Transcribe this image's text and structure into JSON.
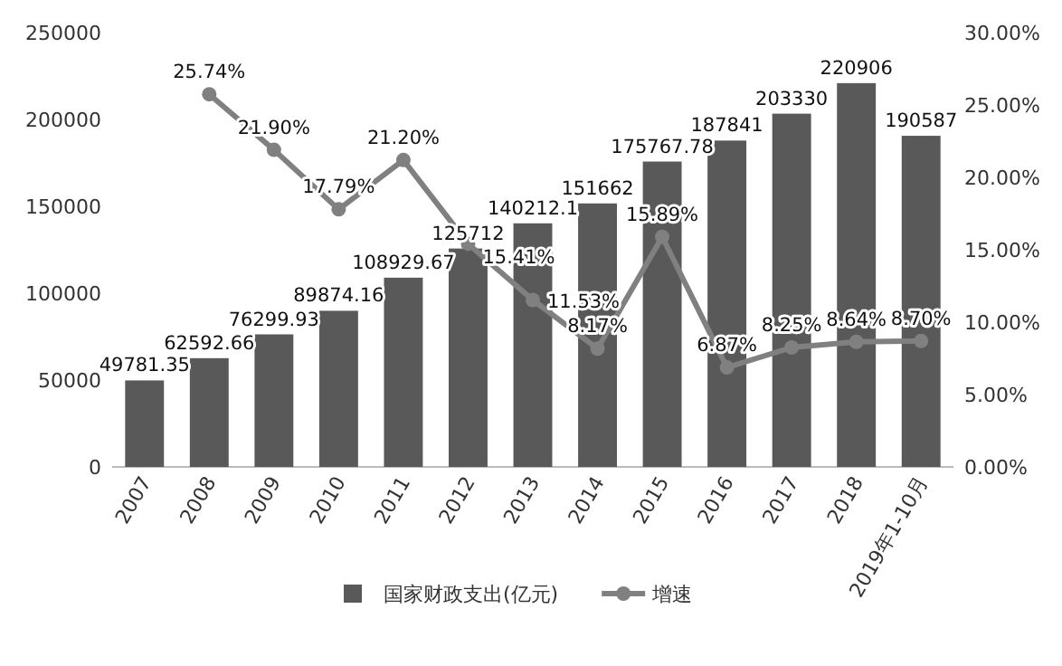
{
  "chart_data": {
    "type": "bar",
    "categories": [
      "2007",
      "2008",
      "2009",
      "2010",
      "2011",
      "2012",
      "2013",
      "2014",
      "2015",
      "2016",
      "2017",
      "2018",
      "2019年1-10月"
    ],
    "series": [
      {
        "name": "国家财政支出(亿元)",
        "type": "bar",
        "color": "#595959",
        "values": [
          49781.35,
          62592.66,
          76299.93,
          89874.16,
          108929.67,
          125712,
          140212.1,
          151662,
          175767.78,
          187841,
          203330,
          220906,
          190587
        ],
        "value_labels": [
          "49781.35",
          "62592.66",
          "76299.93",
          "89874.16",
          "108929.67",
          "125712",
          "140212.1",
          "151662",
          "175767.78",
          "187841",
          "203330",
          "220906",
          "190587"
        ]
      },
      {
        "name": "增速",
        "type": "line",
        "axis": "y2",
        "color": "#808080",
        "marker": "circle",
        "values": [
          null,
          25.74,
          21.9,
          17.79,
          21.2,
          15.41,
          11.53,
          8.17,
          15.89,
          6.87,
          8.25,
          8.64,
          8.7
        ],
        "value_labels": [
          null,
          "25.74%",
          "21.90%",
          "17.79%",
          "21.20%",
          "15.41%",
          "11.53%",
          "8.17%",
          "15.89%",
          "6.87%",
          "8.25%",
          "8.64%",
          "8.70%"
        ]
      }
    ],
    "ylim": [
      0,
      250000
    ],
    "yticks": [
      0,
      50000,
      100000,
      150000,
      200000,
      250000
    ],
    "y2lim": [
      0,
      30
    ],
    "y2ticks": [
      {
        "value": 0,
        "label": "0.00%"
      },
      {
        "value": 5,
        "label": "5.00%"
      },
      {
        "value": 10,
        "label": "10.00%"
      },
      {
        "value": 15,
        "label": "15.00%"
      },
      {
        "value": 20,
        "label": "20.00%"
      },
      {
        "value": 25,
        "label": "25.00%"
      },
      {
        "value": 30,
        "label": "30.00%"
      }
    ],
    "legend": "bottom"
  }
}
